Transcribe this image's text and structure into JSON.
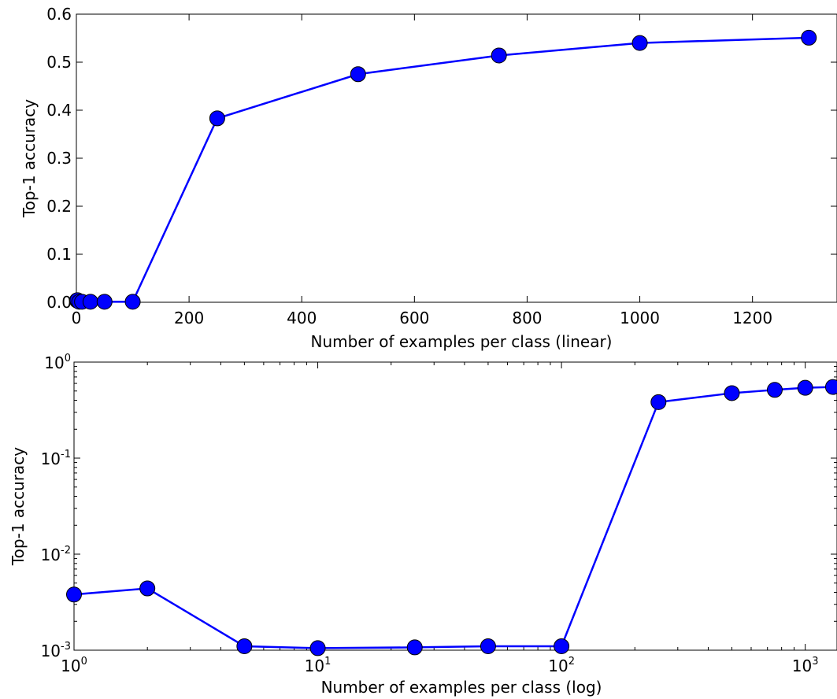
{
  "chart_data": [
    {
      "type": "line",
      "x": [
        1,
        2,
        5,
        10,
        25,
        50,
        100,
        250,
        500,
        750,
        1000,
        1300
      ],
      "series": [
        {
          "values": [
            0.0038,
            0.0044,
            0.0011,
            0.00105,
            0.00107,
            0.0011,
            0.0011,
            0.383,
            0.475,
            0.514,
            0.54,
            0.551
          ],
          "color": "#0000ff"
        }
      ],
      "xlabel": "Number of examples per class (linear)",
      "ylabel": "Top-1 accuracy",
      "xlim": [
        0,
        1350
      ],
      "ylim": [
        0.0,
        0.6
      ],
      "xscale": "linear",
      "yscale": "linear",
      "xticks": [
        "0",
        "200",
        "400",
        "600",
        "800",
        "1000",
        "1200"
      ],
      "yticks": [
        "0.0",
        "0.1",
        "0.2",
        "0.3",
        "0.4",
        "0.5",
        "0.6"
      ],
      "grid": false,
      "legend": false
    },
    {
      "type": "line",
      "x": [
        1,
        2,
        5,
        10,
        25,
        50,
        100,
        250,
        500,
        750,
        1000,
        1300
      ],
      "series": [
        {
          "values": [
            0.0038,
            0.0044,
            0.0011,
            0.00105,
            0.00107,
            0.0011,
            0.0011,
            0.383,
            0.475,
            0.514,
            0.54,
            0.551
          ],
          "color": "#0000ff"
        }
      ],
      "xlabel": "Number of examples per class (log)",
      "ylabel": "Top-1 accuracy",
      "xlim": [
        1,
        1350
      ],
      "ylim": [
        0.001,
        1
      ],
      "xscale": "log",
      "yscale": "log",
      "xticks": [
        {
          "base": "10",
          "exp": "0"
        },
        {
          "base": "10",
          "exp": "1"
        },
        {
          "base": "10",
          "exp": "2"
        },
        {
          "base": "10",
          "exp": "3"
        }
      ],
      "yticks": [
        {
          "base": "10",
          "exp": "-3"
        },
        {
          "base": "10",
          "exp": "-2"
        },
        {
          "base": "10",
          "exp": "-1"
        },
        {
          "base": "10",
          "exp": "0"
        }
      ],
      "grid": false,
      "legend": false
    }
  ]
}
